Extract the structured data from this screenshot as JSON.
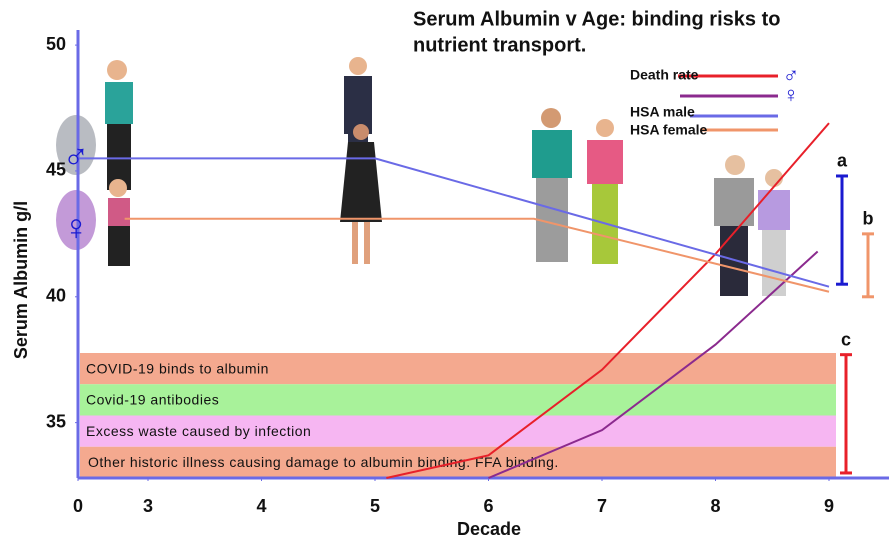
{
  "chart_data": {
    "type": "line",
    "title_lines": [
      "Serum Albumin v Age: binding risks to",
      "nutrient transport."
    ],
    "x_label": "Decade",
    "y_label": "Serum Albumin g/l",
    "xlim": [
      0,
      9.5
    ],
    "xticks": [
      0,
      3,
      4,
      5,
      6,
      7,
      8,
      9
    ],
    "ylim": [
      32.8,
      50.6
    ],
    "yticks": [
      35,
      40,
      45,
      50
    ],
    "axis_color": "#6a6ae6",
    "series": [
      {
        "name": "Death rate",
        "symbol": "♂",
        "color": "#e8202a",
        "x": [
          5.1,
          6,
          7,
          8,
          9
        ],
        "values": [
          32.8,
          33.7,
          37.1,
          41.7,
          46.9
        ]
      },
      {
        "symbol": "♀",
        "color": "#8b2a8e",
        "x": [
          6,
          7,
          8,
          8.9
        ],
        "values": [
          32.8,
          34.7,
          38.1,
          41.8
        ]
      },
      {
        "name": "HSA male",
        "color": "#6a6ae6",
        "x": [
          0,
          5,
          9
        ],
        "values": [
          45.5,
          45.5,
          40.4
        ]
      },
      {
        "name": "HSA female",
        "color": "#f0956a",
        "x": [
          2,
          6.4,
          9
        ],
        "values": [
          43.1,
          43.1,
          40.2
        ]
      }
    ],
    "bands": [
      {
        "label": "COVID-19 binds to albumin",
        "color": "#f4a98f"
      },
      {
        "label": "Covid-19 antibodies",
        "color": "#a8f29a"
      },
      {
        "label": "Excess waste caused by infection",
        "color": "#f6b6f2"
      },
      {
        "label": "Other historic illness causing damage to albumin binding. FFA binding.",
        "color": "#f4a98f"
      }
    ],
    "brackets": [
      {
        "label": "a",
        "color": "#1a1ad0",
        "range": [
          40.5,
          44.8
        ]
      },
      {
        "label": "b",
        "color": "#f0956a",
        "range": [
          40.0,
          42.5
        ]
      },
      {
        "label": "c",
        "color": "#e8202a",
        "range": [
          33.0,
          37.7
        ]
      }
    ],
    "icons": [
      "♂",
      "♀"
    ]
  }
}
